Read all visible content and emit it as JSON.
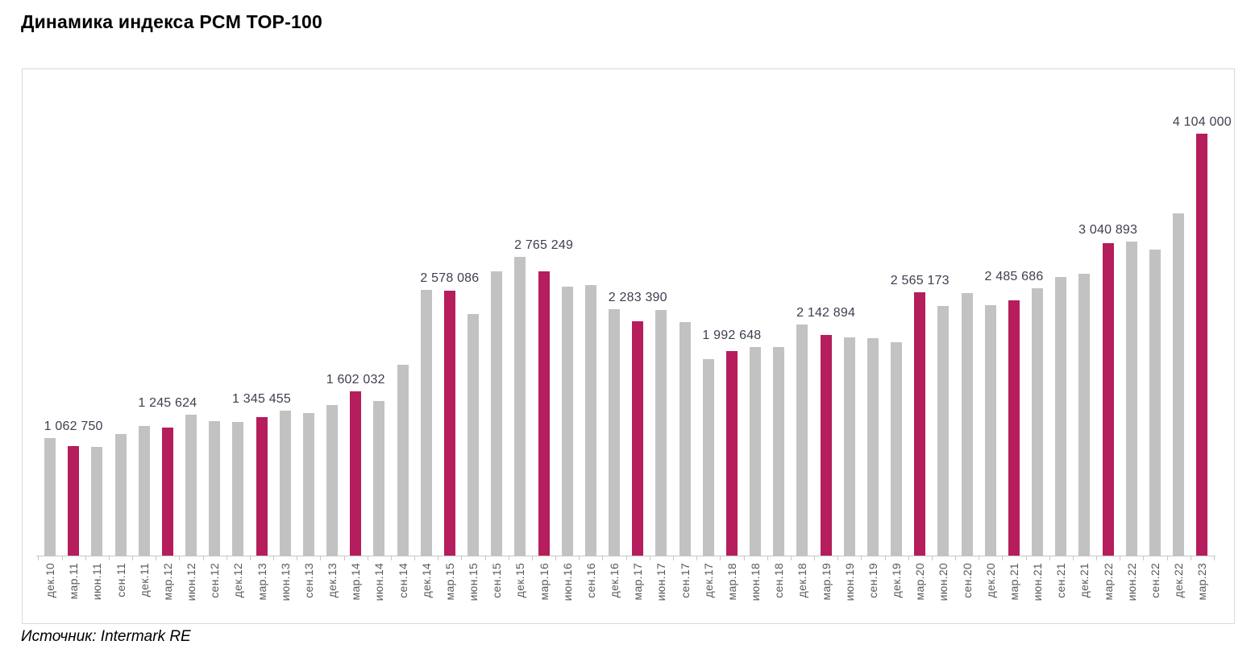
{
  "title": "Динамика индекса PCM TOP-100",
  "source": "Источник: Intermark RE",
  "colors": {
    "bar": "#c2c2c2",
    "highlight": "#b51d5c",
    "value_label": "#3d4050",
    "axis_label": "#595959",
    "axis_line": "#c6c6c6",
    "frame_border": "#d9d9d9"
  },
  "chart_data": {
    "type": "bar",
    "title": "Динамика индекса PCM TOP-100",
    "xlabel": "",
    "ylabel": "",
    "ylim": [
      0,
      4740000
    ],
    "grid": false,
    "legend": false,
    "categories": [
      "дек.10",
      "мар.11",
      "июн.11",
      "сен.11",
      "дек.11",
      "мар.12",
      "июн.12",
      "сен.12",
      "дек.12",
      "мар.13",
      "июн.13",
      "сен.13",
      "дек.13",
      "мар.14",
      "июн.14",
      "сен.14",
      "дек.14",
      "мар.15",
      "июн.15",
      "сен.15",
      "дек.15",
      "мар.16",
      "июн.16",
      "сен.16",
      "дек.16",
      "мар.17",
      "июн.17",
      "сен.17",
      "дек.17",
      "мар.18",
      "июн.18",
      "сен.18",
      "дек.18",
      "мар.19",
      "июн.19",
      "сен.19",
      "дек.19",
      "мар.20",
      "июн.20",
      "сен.20",
      "дек.20",
      "мар.21",
      "июн.21",
      "сен.21",
      "дек.21",
      "мар.22",
      "июн.22",
      "сен.22",
      "дек.22",
      "мар.23"
    ],
    "values": [
      1140000,
      1062750,
      1056000,
      1182000,
      1260000,
      1245624,
      1370000,
      1309000,
      1302000,
      1345455,
      1409000,
      1388000,
      1462000,
      1602032,
      1501000,
      1858000,
      2584000,
      2578086,
      2354000,
      2762000,
      2910000,
      2765249,
      2615000,
      2633000,
      2396000,
      2283390,
      2388000,
      2275000,
      1910000,
      1992648,
      2030000,
      2030000,
      2247000,
      2142894,
      2126000,
      2118000,
      2079000,
      2565173,
      2426000,
      2557000,
      2440000,
      2485686,
      2605000,
      2708000,
      2745000,
      3040893,
      3058000,
      2974000,
      3327000,
      4104000
    ],
    "highlighted_categories": [
      "мар.11",
      "мар.12",
      "мар.13",
      "мар.14",
      "мар.15",
      "мар.16",
      "мар.17",
      "мар.18",
      "мар.19",
      "мар.20",
      "мар.21",
      "мар.22",
      "мар.23"
    ],
    "data_labels": {
      "мар.11": "1 062 750",
      "мар.12": "1 245 624",
      "мар.13": "1 345 455",
      "мар.14": "1 602 032",
      "мар.15": "2 578 086",
      "мар.16": "2 765 249",
      "мар.17": "2 283 390",
      "мар.18": "1 992 648",
      "мар.19": "2 142 894",
      "мар.20": "2 565 173",
      "мар.21": "2 485 686",
      "мар.22": "3 040 893",
      "мар.23": "4 104 000"
    }
  }
}
